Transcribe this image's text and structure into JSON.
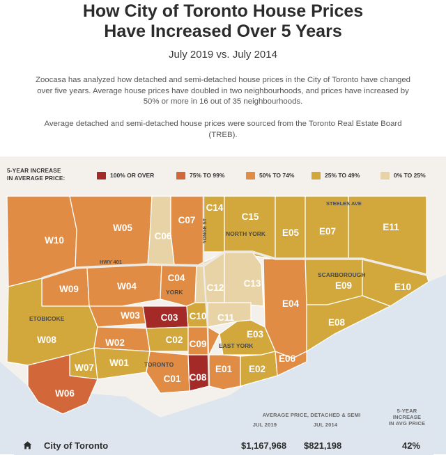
{
  "header": {
    "title_line1": "How City of Toronto House Prices",
    "title_line2": "Have Increased Over 5 Years",
    "subtitle": "July 2019 vs. July 2014",
    "intro": "Zoocasa has analyzed how detached and semi-detached house prices in the City of Toronto have changed over five years. Average house prices have doubled in two neighbourhoods, and prices have increased by 50% or more in 16 out of 35 neighbourhoods.",
    "source": "Average detached and semi-detached house prices were sourced from the Toronto Real Estate Board (TREB)."
  },
  "legend": {
    "title_line1": "5-YEAR INCREASE",
    "title_line2": "IN AVERAGE PRICE:",
    "items": [
      {
        "label": "100% OR OVER",
        "color": "#a32a26"
      },
      {
        "label": "75% TO 99%",
        "color": "#d2673a"
      },
      {
        "label": "50% TO 74%",
        "color": "#e08c45"
      },
      {
        "label": "25% TO 49%",
        "color": "#d2a83c"
      },
      {
        "label": "0% TO 25%",
        "color": "#e8d3a6"
      }
    ]
  },
  "colors": {
    "water": "#dde5ee",
    "panel": "#f4f1ec",
    "road": "#eeeae4"
  },
  "map": {
    "place_labels": {
      "steeles": "STEELES AVE",
      "yonge": "YONGE ST",
      "hwy401": "HWY 401",
      "north_york": "NORTH YORK",
      "york": "YORK",
      "scarborough": "SCARBOROUGH",
      "etobicoke": "ETOBICOKE",
      "east_york": "EAST YORK",
      "toronto": "TORONTO"
    },
    "districts": [
      {
        "code": "W10",
        "band": 2
      },
      {
        "code": "W05",
        "band": 2
      },
      {
        "code": "C06",
        "band": 4
      },
      {
        "code": "C07",
        "band": 2
      },
      {
        "code": "C14",
        "band": 3
      },
      {
        "code": "C15",
        "band": 3
      },
      {
        "code": "E05",
        "band": 3
      },
      {
        "code": "E07",
        "band": 3
      },
      {
        "code": "E11",
        "band": 3
      },
      {
        "code": "W09",
        "band": 2
      },
      {
        "code": "W04",
        "band": 2
      },
      {
        "code": "C04",
        "band": 2
      },
      {
        "code": "C12",
        "band": 4
      },
      {
        "code": "C13",
        "band": 4
      },
      {
        "code": "E04",
        "band": 2
      },
      {
        "code": "E09",
        "band": 3
      },
      {
        "code": "E10",
        "band": 3
      },
      {
        "code": "W03",
        "band": 2
      },
      {
        "code": "C03",
        "band": 0
      },
      {
        "code": "C10",
        "band": 3
      },
      {
        "code": "C11",
        "band": 4
      },
      {
        "code": "W08",
        "band": 3
      },
      {
        "code": "E03",
        "band": 3
      },
      {
        "code": "E08",
        "band": 3
      },
      {
        "code": "W02",
        "band": 2
      },
      {
        "code": "C02",
        "band": 3
      },
      {
        "code": "C09",
        "band": 2
      },
      {
        "code": "W07",
        "band": 3
      },
      {
        "code": "W01",
        "band": 3
      },
      {
        "code": "C01",
        "band": 2
      },
      {
        "code": "C08",
        "band": 0
      },
      {
        "code": "E01",
        "band": 2
      },
      {
        "code": "E02",
        "band": 3
      },
      {
        "code": "E06",
        "band": 2
      },
      {
        "code": "W06",
        "band": 1
      }
    ]
  },
  "table": {
    "header_avg_price": "AVERAGE PRICE, DETACHED & SEMI",
    "col_2019": "JUL 2019",
    "col_2014": "JUL 2014",
    "col_increase_line1": "5-YEAR",
    "col_increase_line2": "INCREASE",
    "col_increase_line3": "IN AVG PRICE",
    "row": {
      "icon": "home-icon",
      "name": "City of Toronto",
      "jul_2019": "$1,167,968",
      "jul_2014": "$821,198",
      "increase": "42%"
    }
  }
}
